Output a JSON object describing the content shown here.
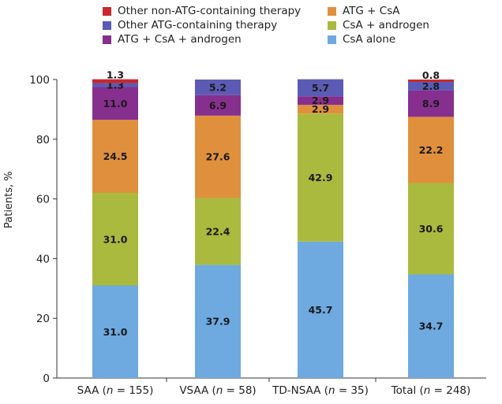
{
  "chart_data": {
    "type": "bar",
    "stacked": true,
    "ylabel": "Patients, %",
    "ylim": [
      0,
      100
    ],
    "yticks": [
      0,
      20,
      40,
      60,
      80,
      100
    ],
    "categories": [
      {
        "name": "SAA",
        "n": "155"
      },
      {
        "name": "VSAA",
        "n": "58"
      },
      {
        "name": "TD-NSAA",
        "n": "35"
      },
      {
        "name": "Total",
        "n": "248"
      }
    ],
    "series": [
      {
        "name": "CsA alone",
        "color": "#6ea9e0",
        "values": [
          31.0,
          37.9,
          45.7,
          34.7
        ]
      },
      {
        "name": "CsA + androgen",
        "color": "#a9ba3e",
        "values": [
          31.0,
          22.4,
          42.9,
          30.6
        ]
      },
      {
        "name": "ATG + CsA",
        "color": "#e0903c",
        "values": [
          24.5,
          27.6,
          2.9,
          22.2
        ]
      },
      {
        "name": "ATG + CsA + androgen",
        "color": "#862f8e",
        "values": [
          11.0,
          6.9,
          2.9,
          8.9
        ]
      },
      {
        "name": "Other ATG-containing therapy",
        "color": "#5b5bb5",
        "values": [
          1.3,
          5.2,
          5.7,
          2.8
        ]
      },
      {
        "name": "Other non-ATG-containing therapy",
        "color": "#c8282e",
        "values": [
          1.3,
          0,
          0,
          0.8
        ]
      }
    ],
    "legend_order": [
      5,
      2,
      4,
      1,
      3,
      0
    ],
    "legend_placement": "top"
  }
}
